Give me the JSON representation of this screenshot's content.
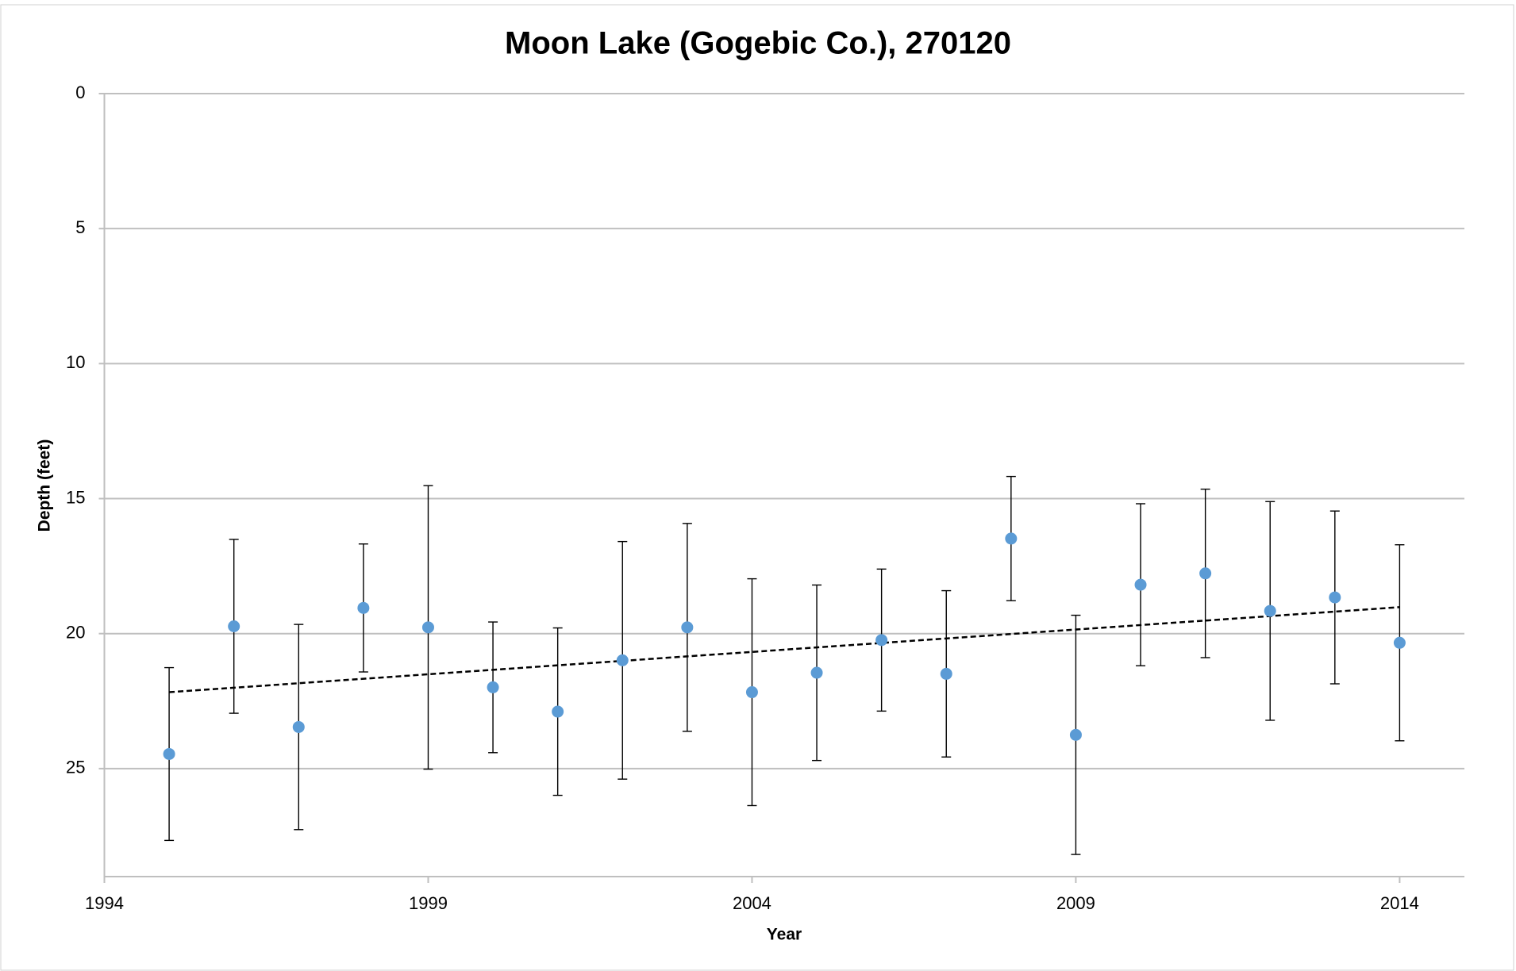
{
  "chart_data": {
    "type": "scatter",
    "title": "Moon Lake (Gogebic Co.), 270120",
    "x_label": "Year",
    "y_label": "Depth (feet)",
    "x": [
      1995,
      1996,
      1997,
      1998,
      1999,
      2000,
      2001,
      2002,
      2003,
      2004,
      2005,
      2006,
      2007,
      2008,
      2009,
      2010,
      2011,
      2012,
      2013,
      2014
    ],
    "values": [
      24.46,
      19.73,
      23.46,
      19.05,
      19.77,
      21.99,
      22.89,
      20.99,
      19.77,
      22.17,
      21.45,
      20.24,
      21.49,
      16.48,
      23.75,
      18.19,
      17.77,
      19.16,
      18.66,
      20.34
    ],
    "errors": [
      3.2,
      3.22,
      3.8,
      2.37,
      5.25,
      2.42,
      3.1,
      4.4,
      3.85,
      4.2,
      3.25,
      2.63,
      3.08,
      2.3,
      4.43,
      3.0,
      3.12,
      4.05,
      3.2,
      3.63
    ],
    "color": "#5b9bd5",
    "trendline": {
      "x": [
        1995,
        2014
      ],
      "values": [
        22.17,
        19.02
      ]
    },
    "xlim": [
      1994,
      2015
    ],
    "xticks": [
      1994,
      1999,
      2004,
      2009,
      2014
    ],
    "ylim": [
      0,
      29
    ],
    "yticks": [
      0,
      5,
      10,
      15,
      20,
      25
    ],
    "y_reversed": true,
    "grid": true
  }
}
